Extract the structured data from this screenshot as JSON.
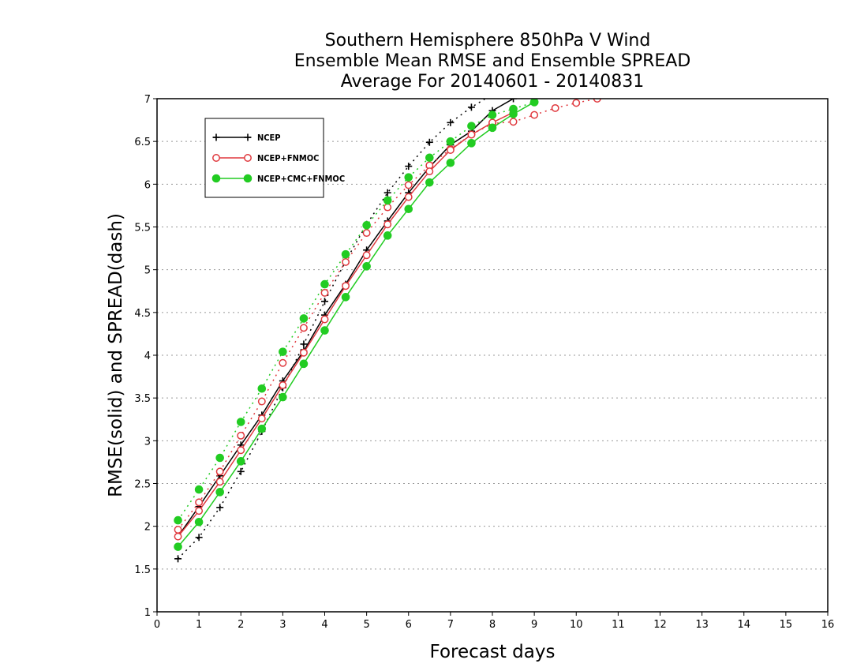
{
  "chart_data": {
    "type": "line",
    "title": [
      "Southern Hemisphere 850hPa V Wind",
      "Ensemble Mean RMSE and Ensemble SPREAD",
      "Average For 20140601 - 20140831"
    ],
    "xlabel": "Forecast days",
    "ylabel": "RMSE(solid) and SPREAD(dash)",
    "xlim": [
      0,
      16
    ],
    "ylim": [
      1,
      7
    ],
    "xticks": [
      "0",
      "1",
      "2",
      "3",
      "4",
      "5",
      "6",
      "7",
      "8",
      "9",
      "10",
      "11",
      "12",
      "13",
      "14",
      "15",
      "16"
    ],
    "yticks": [
      "1",
      "1.5",
      "2",
      "2.5",
      "3",
      "3.5",
      "4",
      "4.5",
      "5",
      "5.5",
      "6",
      "6.5",
      "7"
    ],
    "grid": "horizontal dotted",
    "legend_position": "top-left",
    "series": [
      {
        "name": "NCEP",
        "color": "#000000",
        "marker": "plus",
        "rmse": {
          "x": [
            0.5,
            1,
            1.5,
            2,
            2.5,
            3,
            3.5,
            4,
            4.5,
            5,
            5.5,
            6,
            6.5,
            7,
            7.5,
            8,
            8.5
          ],
          "y": [
            1.88,
            2.23,
            2.59,
            2.95,
            3.3,
            3.7,
            4.05,
            4.47,
            4.83,
            5.23,
            5.57,
            5.9,
            6.2,
            6.46,
            6.62,
            6.86,
            7.0
          ]
        },
        "spread": {
          "x": [
            0.5,
            1,
            1.5,
            2,
            2.5,
            3,
            3.5,
            4,
            4.5,
            5,
            5.5,
            6,
            6.5,
            7,
            7.5,
            8,
            8.5
          ],
          "y": [
            1.62,
            1.87,
            2.22,
            2.64,
            3.11,
            3.62,
            4.13,
            4.63,
            5.1,
            5.53,
            5.9,
            6.21,
            6.49,
            6.72,
            6.9,
            7.05,
            7.16
          ]
        }
      },
      {
        "name": "NCEP+FNMOC",
        "color": "#e0393e",
        "marker": "circle-open",
        "rmse": {
          "x": [
            0.5,
            1,
            1.5,
            2,
            2.5,
            3,
            3.5,
            4,
            4.5,
            5,
            5.5,
            6,
            6.5,
            7,
            7.5,
            8,
            8.5
          ],
          "y": [
            1.88,
            2.18,
            2.52,
            2.89,
            3.26,
            3.65,
            4.03,
            4.42,
            4.81,
            5.17,
            5.53,
            5.85,
            6.15,
            6.4,
            6.58,
            6.72,
            6.84
          ]
        },
        "spread": {
          "x": [
            0.5,
            1,
            1.5,
            2,
            2.5,
            3,
            3.5,
            4,
            4.5,
            5,
            5.5,
            6,
            6.5,
            7,
            7.5,
            8,
            8.5,
            9,
            9.5,
            10,
            10.5
          ],
          "y": [
            1.96,
            2.28,
            2.64,
            3.06,
            3.46,
            3.91,
            4.32,
            4.73,
            5.09,
            5.43,
            5.73,
            5.99,
            6.22,
            6.41,
            6.58,
            6.71,
            6.73,
            6.81,
            6.89,
            6.95,
            7.0
          ]
        }
      },
      {
        "name": "NCEP+CMC+FNMOC",
        "color": "#22cc22",
        "marker": "circle-filled",
        "rmse": {
          "x": [
            0.5,
            1,
            1.5,
            2,
            2.5,
            3,
            3.5,
            4,
            4.5,
            5,
            5.5,
            6,
            6.5,
            7,
            7.5,
            8,
            8.5,
            9
          ],
          "y": [
            1.76,
            2.05,
            2.4,
            2.76,
            3.14,
            3.51,
            3.9,
            4.29,
            4.68,
            5.04,
            5.4,
            5.71,
            6.02,
            6.25,
            6.48,
            6.66,
            6.82,
            6.96
          ]
        },
        "spread": {
          "x": [
            0.5,
            1,
            1.5,
            2,
            2.5,
            3,
            3.5,
            4,
            4.5,
            5,
            5.5,
            6,
            6.5,
            7,
            7.5,
            8,
            8.5,
            9
          ],
          "y": [
            2.07,
            2.43,
            2.8,
            3.22,
            3.61,
            4.04,
            4.43,
            4.83,
            5.18,
            5.52,
            5.81,
            6.08,
            6.31,
            6.5,
            6.68,
            6.81,
            6.88,
            6.96
          ]
        }
      }
    ]
  }
}
